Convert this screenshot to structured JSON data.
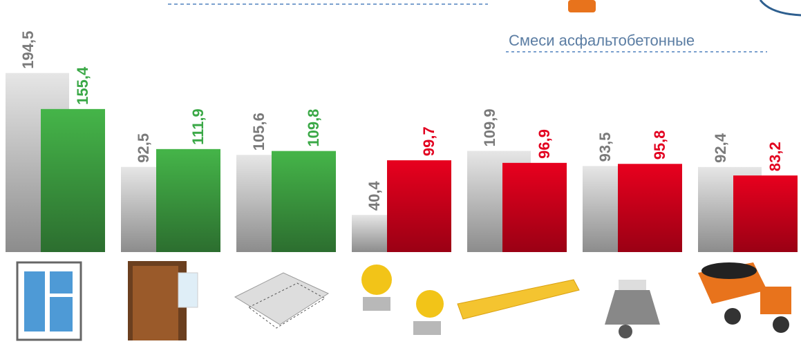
{
  "chart_data": {
    "type": "bar",
    "annotation": "Смеси асфальтобетонные",
    "categories": [
      null,
      null,
      null,
      null,
      null,
      null,
      null
    ],
    "series": [
      {
        "color": "#9e9e9e",
        "label_color": "#7a7a7a",
        "values": [
          194.5,
          92.5,
          105.6,
          40.4,
          109.9,
          93.5,
          92.4
        ],
        "value_labels": [
          "194,5",
          "92,5",
          "105,6",
          "40,4",
          "109,9",
          "93,5",
          "92,4"
        ]
      },
      {
        "colors": [
          "#3aa846",
          "#3aa846",
          "#3aa846",
          "#e2001f",
          "#e2001f",
          "#e2001f",
          "#e2001f"
        ],
        "values": [
          155.4,
          111.9,
          109.8,
          99.7,
          96.9,
          95.8,
          83.2
        ],
        "value_labels": [
          "155,4",
          "111,9",
          "109,8",
          "99,7",
          "96,9",
          "95,8",
          "83,2"
        ]
      }
    ]
  }
}
